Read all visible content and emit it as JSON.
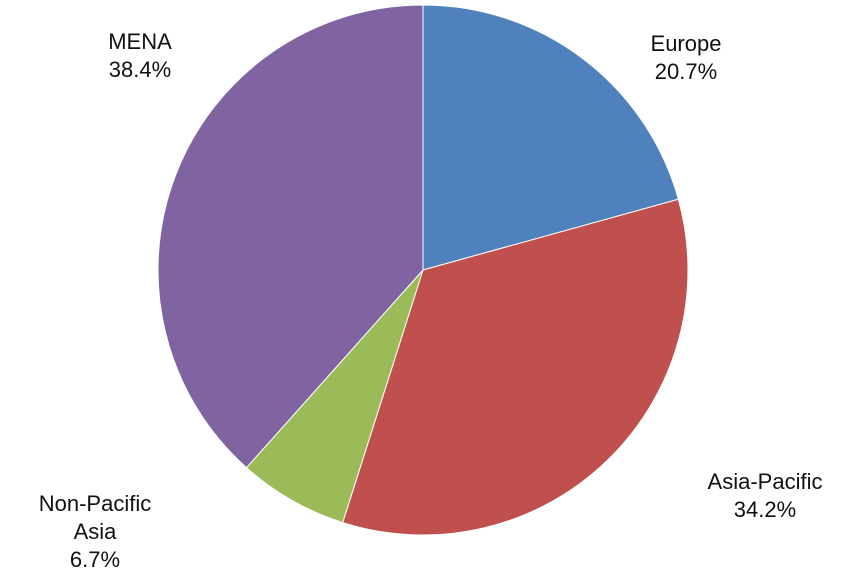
{
  "chart_data": {
    "type": "pie",
    "categories": [
      "Europe",
      "Asia-Pacific",
      "Non-Pacific Asia",
      "MENA"
    ],
    "values": [
      20.7,
      34.2,
      6.7,
      38.4
    ],
    "value_labels": [
      "20.7%",
      "34.2%",
      "6.7%",
      "38.4%"
    ],
    "colors": [
      "#4f81bd",
      "#c0504d",
      "#9bbb59",
      "#8064a2"
    ]
  }
}
